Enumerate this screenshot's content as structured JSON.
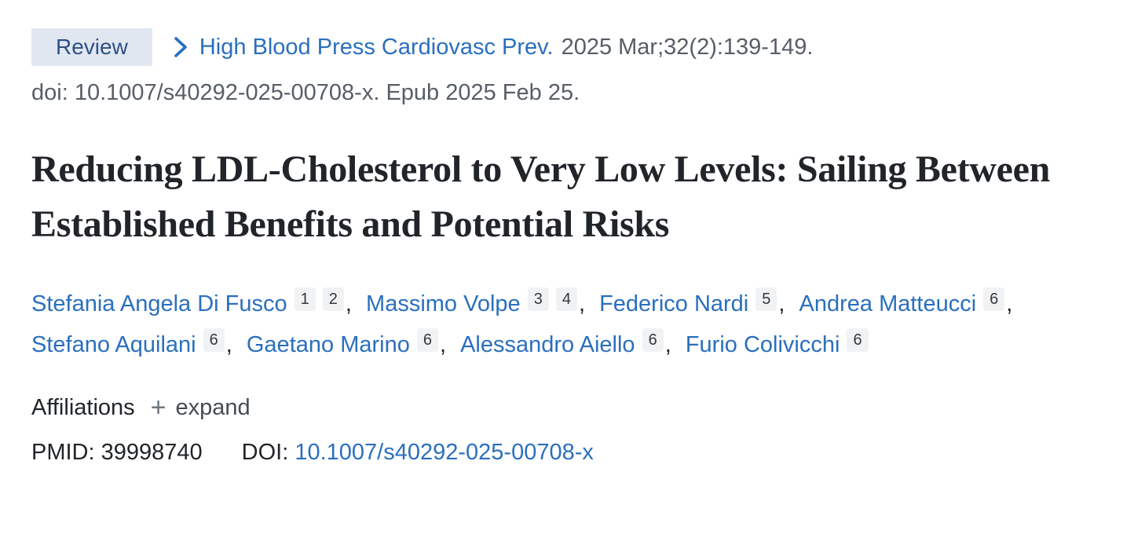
{
  "badge": {
    "label": "Review"
  },
  "citation": {
    "journal": "High Blood Press Cardiovasc Prev.",
    "details": "2025 Mar;32(2):139-149.",
    "doi_line": "doi: 10.1007/s40292-025-00708-x. Epub 2025 Feb 25."
  },
  "title": "Reducing LDL-Cholesterol to Very Low Levels: Sailing Between Established Benefits and Potential Risks",
  "authors": [
    {
      "name": "Stefania Angela Di Fusco",
      "affiliations": [
        "1",
        "2"
      ]
    },
    {
      "name": "Massimo Volpe",
      "affiliations": [
        "3",
        "4"
      ]
    },
    {
      "name": "Federico Nardi",
      "affiliations": [
        "5"
      ]
    },
    {
      "name": "Andrea Matteucci",
      "affiliations": [
        "6"
      ]
    },
    {
      "name": "Stefano Aquilani",
      "affiliations": [
        "6"
      ]
    },
    {
      "name": "Gaetano Marino",
      "affiliations": [
        "6"
      ]
    },
    {
      "name": "Alessandro Aiello",
      "affiliations": [
        "6"
      ]
    },
    {
      "name": "Furio Colivicchi",
      "affiliations": [
        "6"
      ]
    }
  ],
  "affiliations_section": {
    "label": "Affiliations",
    "expand_label": "expand"
  },
  "ids": {
    "pmid_label": "PMID:",
    "pmid_value": "39998740",
    "doi_label": "DOI:",
    "doi_value": "10.1007/s40292-025-00708-x"
  },
  "icons": {
    "plus_glyph": "+",
    "breadcrumb_chevron": "chevron-right"
  },
  "colors": {
    "link_blue": "#2a6fbe",
    "badge_background": "#e1e7f0",
    "badge_text": "#2d4f87",
    "muted_gray": "#575e67",
    "title_dark": "#212529",
    "sup_background": "#f1f2f3"
  }
}
